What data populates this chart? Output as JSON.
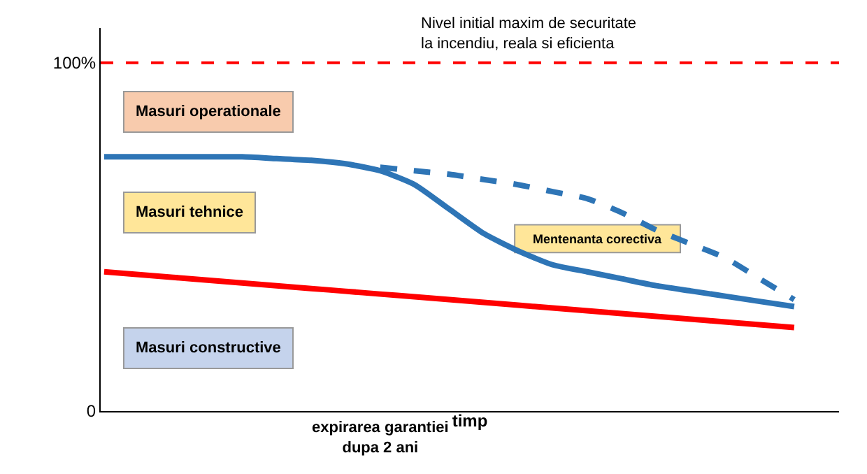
{
  "chart_data": {
    "type": "line",
    "xlabel": "timp",
    "categories": [
      null,
      null,
      null,
      null,
      null,
      null,
      null,
      null,
      null,
      null,
      null,
      null,
      null,
      null,
      null,
      null,
      null,
      null,
      null,
      null,
      null
    ],
    "series": [
      {
        "color": "#ff0000",
        "values": [
          40,
          39.2,
          38.4,
          37.6,
          36.8,
          36,
          35.2,
          34.4,
          33.6,
          32.8,
          32,
          31.2,
          30.4,
          29.6,
          28.8,
          28,
          27.2,
          26.4,
          25.6,
          24.8,
          24
        ]
      },
      {
        "color": "#2e75b6",
        "values": [
          73,
          73,
          73,
          73,
          73,
          72.5,
          72,
          71,
          69,
          65,
          58,
          51,
          46,
          42,
          40,
          38,
          36,
          34.5,
          33,
          31.5,
          30
        ]
      },
      {
        "color": "#2e75b6",
        "line_style": "dashed",
        "values": [
          null,
          null,
          null,
          null,
          null,
          null,
          null,
          null,
          70,
          69,
          68,
          66.5,
          65,
          63,
          61,
          57,
          52,
          48,
          44,
          38,
          32
        ]
      }
    ],
    "ylim": [
      0,
      110
    ],
    "yticks": [
      0,
      {
        "value": 100,
        "label": "100%"
      }
    ],
    "tick_labels": "y",
    "legend": false,
    "marker": "none",
    "ref_lines": [
      {
        "axis": "y",
        "value": 100,
        "label": "Nivel initial maxim de securitate\nla incendiu, reala si eficienta",
        "color": "#ff0000",
        "line_style": "dashed"
      }
    ],
    "annotations": [
      "Masuri operationale",
      "Masuri tehnice",
      "Masuri constructive",
      "Mentenanta corectiva",
      "expirarea garantiei\ndupa 2 ani"
    ]
  }
}
